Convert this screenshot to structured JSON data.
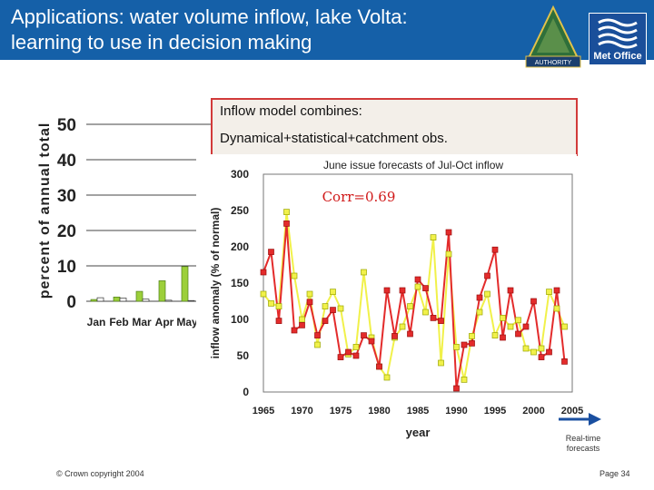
{
  "slide": {
    "title_line1": "Applications: water volume inflow, lake Volta:",
    "title_line2": "learning to use in decision making",
    "info_line1": "Inflow model combines:",
    "info_line2": "Dynamical+statistical+catchment obs.",
    "realtime_line1": "Real-time",
    "realtime_line2": "forecasts",
    "copyright": "© Crown copyright 2004",
    "page": "Page 34",
    "logo_volta_text": "AUTHORITY",
    "logo_metoffice_text": "Met Office"
  },
  "colors": {
    "header": "#1560a8",
    "observed": "#e32b2b",
    "forecast": "#f1f14a",
    "forecast_outline": "#9aa600",
    "arrow": "#1a4fa0",
    "box_border": "#d23a3a",
    "plot_bg": "#ffffff"
  },
  "chart_data": [
    {
      "type": "bar",
      "ylabel": "percent of annual total",
      "ylim": [
        0,
        50
      ],
      "yticks": [
        "0",
        "10",
        "20",
        "30",
        "40",
        "50"
      ],
      "categories": [
        "Jan",
        "Feb",
        "Mar",
        "Apr",
        "May"
      ],
      "series": [
        {
          "values": [
            0.5,
            1.2,
            2.8,
            5.8,
            9.8
          ],
          "color": "#9ccf3a"
        },
        {
          "values": [
            1.0,
            0.9,
            0.6,
            0.3,
            0.2
          ],
          "color": "#ffffff"
        }
      ],
      "grid": "horizontal"
    },
    {
      "type": "line",
      "title": "June issue forecasts of Jul-Oct inflow",
      "xlabel": "year",
      "ylabel": "inflow anomaly (% of normal)",
      "annotation": "Corr=0.69",
      "xlim": [
        1965,
        2005
      ],
      "ylim": [
        0,
        300
      ],
      "xticks": [
        "1965",
        "1970",
        "1975",
        "1980",
        "1985",
        "1990",
        "1995",
        "2000",
        "2005"
      ],
      "yticks": [
        "0",
        "50",
        "100",
        "150",
        "200",
        "250",
        "300"
      ],
      "series": [
        {
          "marker": "square",
          "x": [
            1965,
            1966,
            1967,
            1968,
            1969,
            1970,
            1971,
            1972,
            1973,
            1974,
            1975,
            1976,
            1977,
            1978,
            1979,
            1980,
            1981,
            1982,
            1983,
            1984,
            1985,
            1986,
            1987,
            1988,
            1989,
            1990,
            1991,
            1992,
            1993,
            1994,
            1995,
            1996,
            1997,
            1998,
            1999,
            2000,
            2001,
            2002,
            2003,
            2004
          ],
          "values": [
            165,
            193,
            98,
            232,
            85,
            92,
            124,
            78,
            98,
            113,
            48,
            55,
            50,
            78,
            70,
            35,
            140,
            77,
            140,
            80,
            155,
            143,
            102,
            98,
            220,
            5,
            65,
            67,
            130,
            160,
            196,
            75,
            140,
            80,
            90,
            125,
            48,
            55,
            140,
            42
          ]
        },
        {
          "marker": "square",
          "x": [
            1965,
            1966,
            1967,
            1968,
            1969,
            1970,
            1971,
            1972,
            1973,
            1974,
            1975,
            1976,
            1977,
            1978,
            1979,
            1980,
            1981,
            1982,
            1983,
            1984,
            1985,
            1986,
            1987,
            1988,
            1989,
            1990,
            1991,
            1992,
            1993,
            1994,
            1995,
            1996,
            1997,
            1998,
            1999,
            2000,
            2001,
            2002,
            2003,
            2004
          ],
          "values": [
            135,
            122,
            118,
            248,
            160,
            100,
            135,
            65,
            118,
            138,
            115,
            52,
            62,
            165,
            75,
            35,
            20,
            75,
            90,
            118,
            145,
            110,
            213,
            40,
            190,
            62,
            17,
            77,
            110,
            135,
            78,
            102,
            90,
            99,
            60,
            55,
            60,
            138,
            115,
            90
          ]
        }
      ]
    }
  ]
}
